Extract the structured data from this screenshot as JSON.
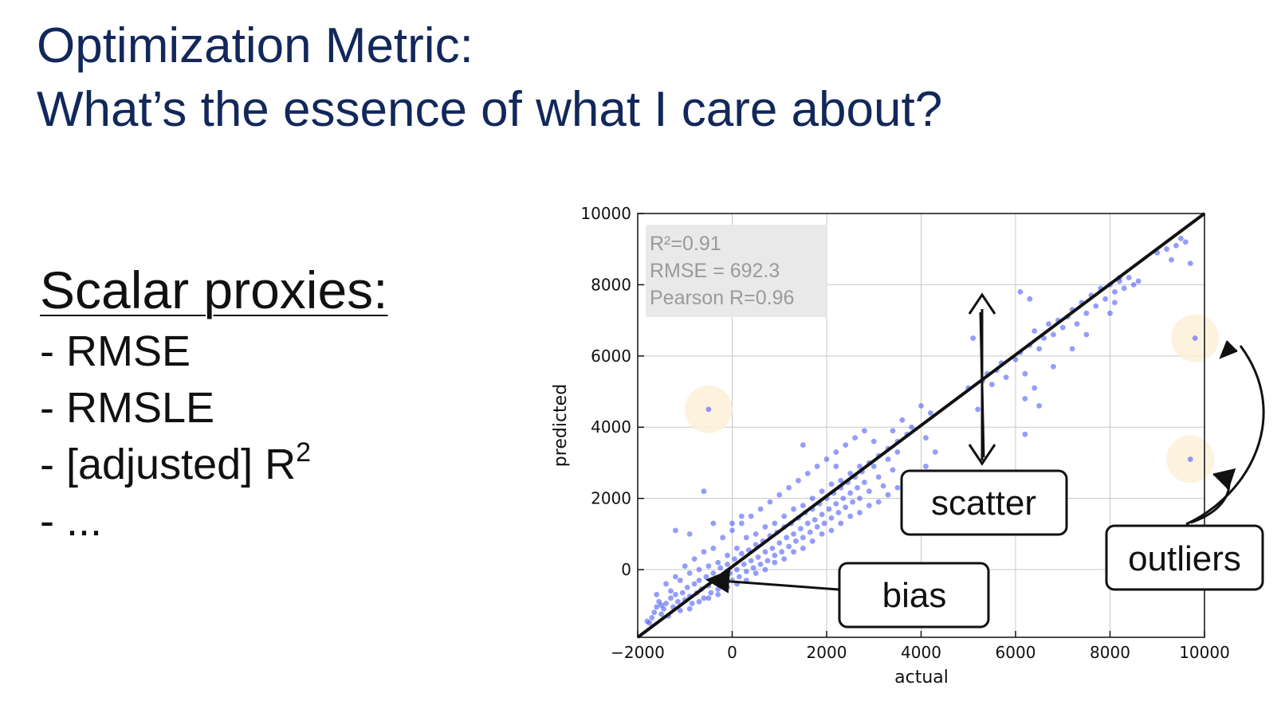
{
  "slide": {
    "title_line1": "Optimization Metric:",
    "title_line2": "What’s the essence of what I care about?"
  },
  "proxies": {
    "heading": "Scalar proxies:",
    "items": [
      {
        "text": "- RMSE",
        "sup": ""
      },
      {
        "text": "- RMSLE",
        "sup": ""
      },
      {
        "text": "- [adjusted] R",
        "sup": "2"
      },
      {
        "text": "- ...",
        "sup": ""
      }
    ]
  },
  "chart_data": {
    "type": "scatter",
    "xlabel": "actual",
    "ylabel": "predicted",
    "xlim": [
      -2000,
      10000
    ],
    "ylim": [
      -1900,
      10000
    ],
    "xticks": [
      -2000,
      0,
      2000,
      4000,
      6000,
      8000,
      10000
    ],
    "yticks": [
      0,
      2000,
      4000,
      6000,
      8000,
      10000
    ],
    "xtick_labels": [
      "−2000",
      "0",
      "2000",
      "4000",
      "6000",
      "8000",
      "10000"
    ],
    "ytick_labels": [
      "0",
      "2000",
      "4000",
      "6000",
      "8000",
      "10000"
    ],
    "grid": true,
    "point_color": "#3b4cf5",
    "identity_line": {
      "from": [
        -2000,
        -1900
      ],
      "to": [
        10000,
        10000
      ]
    },
    "stats": {
      "r2": "R²=0.91",
      "rmse": "RMSE = 692.3",
      "pearson": "Pearson R=0.96"
    },
    "points": [
      [
        -1800,
        -1450
      ],
      [
        -1750,
        -1500
      ],
      [
        -1700,
        -1350
      ],
      [
        -1650,
        -1200
      ],
      [
        -1600,
        -1050
      ],
      [
        -1550,
        -900
      ],
      [
        -1500,
        -1250
      ],
      [
        -1450,
        -1100
      ],
      [
        -1400,
        -950
      ],
      [
        -1350,
        -1300
      ],
      [
        -1300,
        -800
      ],
      [
        -1250,
        -1050
      ],
      [
        -1200,
        -700
      ],
      [
        -1150,
        -900
      ],
      [
        -1100,
        -1150
      ],
      [
        -1050,
        -650
      ],
      [
        -1000,
        -850
      ],
      [
        -950,
        -500
      ],
      [
        -900,
        -750
      ],
      [
        -850,
        -950
      ],
      [
        -800,
        -400
      ],
      [
        -750,
        -650
      ],
      [
        -700,
        -300
      ],
      [
        -650,
        -550
      ],
      [
        -600,
        -800
      ],
      [
        -550,
        -200
      ],
      [
        -500,
        -450
      ],
      [
        -450,
        -650
      ],
      [
        -400,
        -100
      ],
      [
        -350,
        -350
      ],
      [
        -300,
        -550
      ],
      [
        -250,
        50
      ],
      [
        -200,
        -250
      ],
      [
        -150,
        -450
      ],
      [
        -100,
        150
      ],
      [
        -50,
        -100
      ],
      [
        0,
        -300
      ],
      [
        50,
        300
      ],
      [
        100,
        0
      ],
      [
        150,
        -200
      ],
      [
        200,
        450
      ],
      [
        250,
        150
      ],
      [
        300,
        -50
      ],
      [
        350,
        550
      ],
      [
        400,
        250
      ],
      [
        450,
        50
      ],
      [
        500,
        700
      ],
      [
        550,
        350
      ],
      [
        600,
        150
      ],
      [
        650,
        800
      ],
      [
        700,
        500
      ],
      [
        750,
        250
      ],
      [
        800,
        950
      ],
      [
        850,
        600
      ],
      [
        900,
        400
      ],
      [
        950,
        1050
      ],
      [
        1000,
        750
      ],
      [
        1050,
        500
      ],
      [
        1100,
        1200
      ],
      [
        1150,
        900
      ],
      [
        1200,
        650
      ],
      [
        1250,
        1300
      ],
      [
        1300,
        1000
      ],
      [
        1350,
        800
      ],
      [
        1400,
        1450
      ],
      [
        1450,
        1150
      ],
      [
        1500,
        900
      ],
      [
        1550,
        1600
      ],
      [
        1600,
        1300
      ],
      [
        1650,
        1050
      ],
      [
        1700,
        1700
      ],
      [
        1750,
        1400
      ],
      [
        1800,
        1200
      ],
      [
        1850,
        1850
      ],
      [
        1900,
        1550
      ],
      [
        1950,
        1300
      ],
      [
        2000,
        2000
      ],
      [
        2050,
        1700
      ],
      [
        2100,
        1450
      ],
      [
        2150,
        2150
      ],
      [
        2200,
        1850
      ],
      [
        2250,
        1600
      ],
      [
        2300,
        2300
      ],
      [
        2350,
        2000
      ],
      [
        2400,
        1750
      ],
      [
        2450,
        2450
      ],
      [
        2500,
        2150
      ],
      [
        2550,
        1900
      ],
      [
        2600,
        2600
      ],
      [
        2650,
        2300
      ],
      [
        2700,
        2000
      ],
      [
        2750,
        2750
      ],
      [
        2800,
        2450
      ],
      [
        2900,
        2200
      ],
      [
        3000,
        2900
      ],
      [
        3100,
        2600
      ],
      [
        3200,
        2350
      ],
      [
        3300,
        3100
      ],
      [
        3400,
        2800
      ],
      [
        3500,
        3300
      ],
      [
        -1600,
        -700
      ],
      [
        -1400,
        -400
      ],
      [
        -1200,
        -200
      ],
      [
        -1000,
        100
      ],
      [
        -800,
        300
      ],
      [
        -600,
        500
      ],
      [
        -400,
        600
      ],
      [
        -200,
        900
      ],
      [
        0,
        1100
      ],
      [
        200,
        1300
      ],
      [
        400,
        1500
      ],
      [
        600,
        1700
      ],
      [
        800,
        1900
      ],
      [
        1000,
        2100
      ],
      [
        1200,
        2300
      ],
      [
        1400,
        2500
      ],
      [
        1600,
        2700
      ],
      [
        1800,
        2900
      ],
      [
        2000,
        3100
      ],
      [
        2200,
        3300
      ],
      [
        2400,
        3500
      ],
      [
        2600,
        3700
      ],
      [
        2800,
        3900
      ],
      [
        -1500,
        -1000
      ],
      [
        -1300,
        -600
      ],
      [
        -1100,
        -300
      ],
      [
        -900,
        -100
      ],
      [
        -700,
        0
      ],
      [
        -500,
        100
      ],
      [
        -300,
        200
      ],
      [
        -100,
        400
      ],
      [
        100,
        600
      ],
      [
        300,
        900
      ],
      [
        500,
        1000
      ],
      [
        700,
        1200
      ],
      [
        900,
        1300
      ],
      [
        1100,
        1500
      ],
      [
        1300,
        1700
      ],
      [
        1500,
        1800
      ],
      [
        1700,
        2000
      ],
      [
        1900,
        2200
      ],
      [
        2100,
        2400
      ],
      [
        2300,
        2500
      ],
      [
        2500,
        2700
      ],
      [
        2700,
        2900
      ],
      [
        2900,
        3000
      ],
      [
        3100,
        3200
      ],
      [
        3300,
        3400
      ],
      [
        3500,
        3600
      ],
      [
        3700,
        3800
      ],
      [
        -900,
        -1100
      ],
      [
        -700,
        -900
      ],
      [
        -500,
        -800
      ],
      [
        -300,
        -700
      ],
      [
        -100,
        -500
      ],
      [
        100,
        -400
      ],
      [
        300,
        -300
      ],
      [
        500,
        -100
      ],
      [
        700,
        0
      ],
      [
        900,
        200
      ],
      [
        1100,
        300
      ],
      [
        1300,
        500
      ],
      [
        1500,
        600
      ],
      [
        1700,
        800
      ],
      [
        1900,
        1000
      ],
      [
        2100,
        1100
      ],
      [
        2300,
        1300
      ],
      [
        2500,
        1500
      ],
      [
        2700,
        1600
      ],
      [
        2900,
        1800
      ],
      [
        3100,
        1900
      ],
      [
        3300,
        2100
      ],
      [
        3500,
        2300
      ],
      [
        3700,
        2500
      ],
      [
        3900,
        2700
      ],
      [
        4100,
        2900
      ],
      [
        -600,
        2200
      ],
      [
        -500,
        4500
      ],
      [
        200,
        1500
      ],
      [
        0,
        1300
      ],
      [
        -1200,
        1100
      ],
      [
        -900,
        1000
      ],
      [
        -400,
        1300
      ],
      [
        1500,
        3500
      ],
      [
        2200,
        2900
      ],
      [
        3000,
        3600
      ],
      [
        3400,
        3900
      ],
      [
        3600,
        4200
      ],
      [
        3800,
        4000
      ],
      [
        4100,
        3700
      ],
      [
        4300,
        3300
      ],
      [
        4000,
        4600
      ],
      [
        4200,
        4400
      ],
      [
        5000,
        5100
      ],
      [
        5100,
        6500
      ],
      [
        5300,
        5300
      ],
      [
        5200,
        4500
      ],
      [
        5400,
        5500
      ],
      [
        5500,
        5200
      ],
      [
        5600,
        5600
      ],
      [
        5700,
        5800
      ],
      [
        5800,
        5400
      ],
      [
        6000,
        5900
      ],
      [
        6100,
        6100
      ],
      [
        6200,
        5500
      ],
      [
        6300,
        6300
      ],
      [
        6400,
        6700
      ],
      [
        6500,
        6200
      ],
      [
        6600,
        6500
      ],
      [
        6700,
        6900
      ],
      [
        6800,
        6600
      ],
      [
        6900,
        7000
      ],
      [
        7000,
        6800
      ],
      [
        7100,
        7100
      ],
      [
        7200,
        7300
      ],
      [
        7300,
        6900
      ],
      [
        7400,
        7500
      ],
      [
        7500,
        7200
      ],
      [
        7600,
        7700
      ],
      [
        7700,
        7400
      ],
      [
        7800,
        7900
      ],
      [
        7900,
        7600
      ],
      [
        8000,
        8000
      ],
      [
        8100,
        7800
      ],
      [
        8200,
        8100
      ],
      [
        8300,
        7900
      ],
      [
        8400,
        8200
      ],
      [
        8500,
        8000
      ],
      [
        8600,
        8100
      ],
      [
        6100,
        7800
      ],
      [
        6300,
        7600
      ],
      [
        6200,
        4800
      ],
      [
        6400,
        5100
      ],
      [
        6500,
        4600
      ],
      [
        6200,
        3800
      ],
      [
        6800,
        5700
      ],
      [
        7500,
        6600
      ],
      [
        7200,
        6200
      ],
      [
        8000,
        7200
      ],
      [
        8200,
        8200
      ],
      [
        8100,
        7500
      ],
      [
        9000,
        8900
      ],
      [
        9200,
        9000
      ],
      [
        9300,
        8700
      ],
      [
        9400,
        9100
      ],
      [
        9500,
        9300
      ],
      [
        9600,
        9200
      ],
      [
        9700,
        8600
      ],
      [
        9800,
        6500
      ],
      [
        9700,
        3100
      ]
    ]
  },
  "callouts": {
    "scatter": "scatter",
    "bias": "bias",
    "outliers": "outliers"
  },
  "colors": {
    "title": "#12285a",
    "highlight": "#fdf0d8",
    "stats_box": "#e9e9e9"
  }
}
